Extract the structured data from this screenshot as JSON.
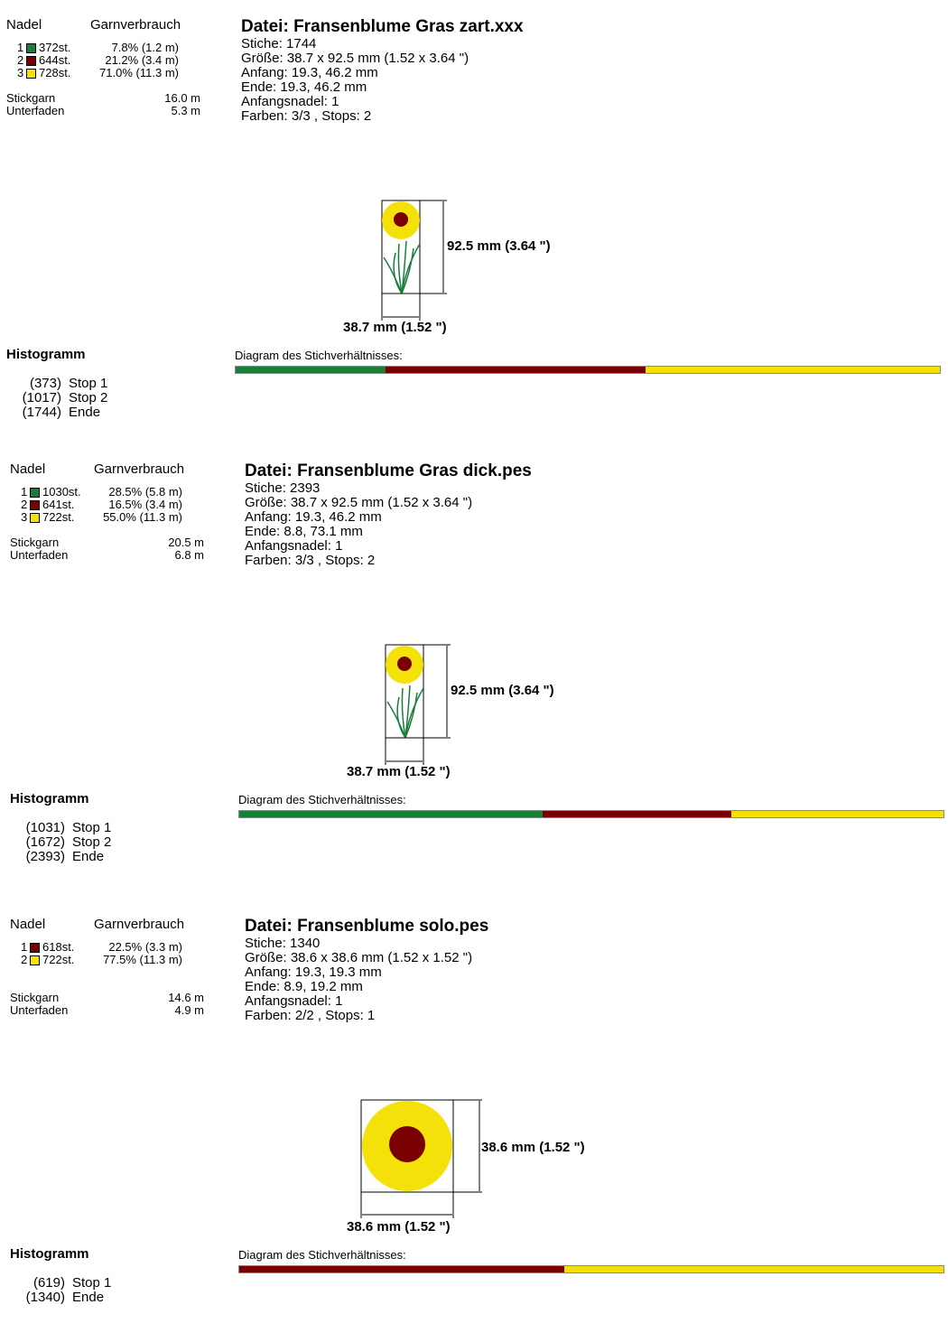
{
  "colors": {
    "green": "#1a7d3c",
    "darkred": "#7a0000",
    "yellow": "#f5e10a"
  },
  "labels": {
    "nadel": "Nadel",
    "garnverbrauch": "Garnverbrauch",
    "stickgarn": "Stickgarn",
    "unterfaden": "Unterfaden",
    "histogramm": "Histogramm",
    "diagram": "Diagram des Stichverhältnisses:"
  },
  "sections": [
    {
      "title": "Datei: Fransenblume Gras zart.xxx",
      "info": [
        "Stiche: 1744",
        "Größe: 38.7 x 92.5 mm (1.52 x 3.64 \")",
        "Anfang: 19.3, 46.2 mm",
        "Ende: 19.3, 46.2 mm",
        "Anfangsnadel: 1",
        "Farben: 3/3 , Stops: 2"
      ],
      "needles": [
        {
          "num": "1",
          "color": "green",
          "stitches": "372st.",
          "usage": "7.8% (1.2 m)",
          "count": 372
        },
        {
          "num": "2",
          "color": "darkred",
          "stitches": "644st.",
          "usage": "21.2% (3.4 m)",
          "count": 644
        },
        {
          "num": "3",
          "color": "yellow",
          "stitches": "728st.",
          "usage": "71.0% (11.3 m)",
          "count": 728
        }
      ],
      "stickgarn": "16.0 m",
      "unterfaden": "5.3 m",
      "height_label": "92.5 mm (3.64 \")",
      "width_label": "38.7 mm (1.52 \")",
      "design": "flower-with-grass",
      "stops": [
        {
          "count": "(373)",
          "label": "Stop 1"
        },
        {
          "count": "(1017)",
          "label": "Stop 2"
        },
        {
          "count": "(1744)",
          "label": "Ende"
        }
      ]
    },
    {
      "title": "Datei: Fransenblume Gras dick.pes",
      "info": [
        "Stiche: 2393",
        "Größe: 38.7 x 92.5 mm (1.52 x 3.64 \")",
        "Anfang: 19.3, 46.2 mm",
        "Ende: 8.8, 73.1 mm",
        "Anfangsnadel: 1",
        "Farben: 3/3 , Stops: 2"
      ],
      "needles": [
        {
          "num": "1",
          "color": "green",
          "stitches": "1030st.",
          "usage": "28.5% (5.8 m)",
          "count": 1030
        },
        {
          "num": "2",
          "color": "darkred",
          "stitches": "641st.",
          "usage": "16.5% (3.4 m)",
          "count": 641
        },
        {
          "num": "3",
          "color": "yellow",
          "stitches": "722st.",
          "usage": "55.0% (11.3 m)",
          "count": 722
        }
      ],
      "stickgarn": "20.5 m",
      "unterfaden": "6.8 m",
      "height_label": "92.5 mm (3.64 \")",
      "width_label": "38.7 mm (1.52 \")",
      "design": "flower-with-grass",
      "stops": [
        {
          "count": "(1031)",
          "label": "Stop 1"
        },
        {
          "count": "(1672)",
          "label": "Stop 2"
        },
        {
          "count": "(2393)",
          "label": "Ende"
        }
      ]
    },
    {
      "title": "Datei: Fransenblume solo.pes",
      "info": [
        "Stiche: 1340",
        "Größe: 38.6 x 38.6 mm (1.52 x 1.52 \")",
        "Anfang: 19.3, 19.3 mm",
        "Ende: 8.9, 19.2 mm",
        "Anfangsnadel: 1",
        "Farben: 2/2 , Stops: 1"
      ],
      "needles": [
        {
          "num": "1",
          "color": "darkred",
          "stitches": "618st.",
          "usage": "22.5% (3.3 m)",
          "count": 618
        },
        {
          "num": "2",
          "color": "yellow",
          "stitches": "722st.",
          "usage": "77.5% (11.3 m)",
          "count": 722
        }
      ],
      "stickgarn": "14.6 m",
      "unterfaden": "4.9 m",
      "height_label": "38.6 mm (1.52 \")",
      "width_label": "38.6 mm (1.52 \")",
      "design": "flower-solo",
      "stops": [
        {
          "count": "(619)",
          "label": "Stop 1"
        },
        {
          "count": "(1340)",
          "label": "Ende"
        }
      ]
    }
  ]
}
